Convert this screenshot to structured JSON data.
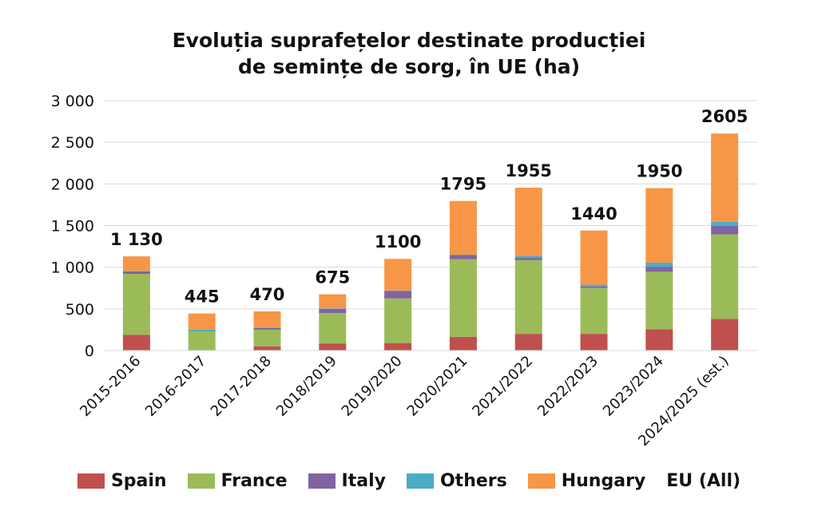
{
  "chart_data": {
    "type": "bar",
    "stacked": true,
    "title": "Evoluția suprafețelor destinate producției de semințe de sorg, în UE (ha)",
    "title_lines": [
      "Evoluția suprafețelor destinate producției",
      "de semințe de sorg, în UE (ha)"
    ],
    "categories": [
      "2015-2016",
      "2016-2017",
      "2017-2018",
      "2018/2019",
      "2019/2020",
      "2020/2021",
      "2021/2022",
      "2022/2023",
      "2023/2024",
      "2024/2025 (est.)"
    ],
    "series": [
      {
        "name": "Spain",
        "color": "#c0504d",
        "values": [
          190,
          0,
          50,
          85,
          90,
          165,
          200,
          200,
          255,
          380
        ]
      },
      {
        "name": "France",
        "color": "#9bbb59",
        "values": [
          730,
          230,
          200,
          365,
          535,
          930,
          885,
          550,
          690,
          1015
        ]
      },
      {
        "name": "Italy",
        "color": "#8064a2",
        "values": [
          30,
          0,
          20,
          50,
          90,
          50,
          30,
          20,
          60,
          100
        ]
      },
      {
        "name": "Others",
        "color": "#4bacc6",
        "values": [
          5,
          20,
          10,
          5,
          5,
          5,
          20,
          20,
          50,
          50
        ]
      },
      {
        "name": "Hungary",
        "color": "#f79646",
        "values": [
          175,
          195,
          190,
          170,
          380,
          645,
          820,
          650,
          895,
          1060
        ]
      }
    ],
    "totals_label_series": "EU (All)",
    "totals": [
      "1 130",
      "445",
      "470",
      "675",
      "1100",
      "1795",
      "1955",
      "1440",
      "1950",
      "2605"
    ],
    "ylim": [
      0,
      3000
    ],
    "yticks": [
      0,
      500,
      1000,
      1500,
      2000,
      2500,
      3000
    ],
    "ytick_labels": [
      "0",
      "500",
      "1 000",
      "1 500",
      "2 000",
      "2 500",
      "3 000"
    ],
    "grid": true,
    "legend_position": "bottom",
    "xlabel": "",
    "ylabel": ""
  }
}
